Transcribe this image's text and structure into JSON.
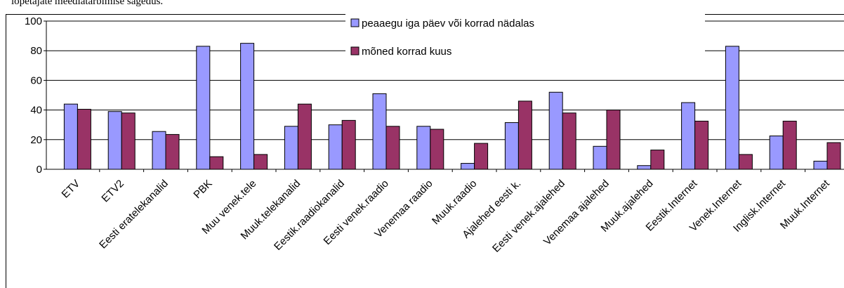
{
  "chart_data": {
    "type": "bar",
    "title": "lõpetajate meediatarbimise sagedus.",
    "categories": [
      "ETV",
      "ETV2",
      "Eesti eratelekanalid",
      "PBK",
      "Muu venek.tele",
      "Muuk.telekanalid",
      "Eestik.raadiokanalid",
      "Eesti venek.raadio",
      "Venemaa raadio",
      "Muuk.raadio",
      "Ajalehed eesti k.",
      "Eesti venek.ajalehed",
      "Venemaa ajalehed",
      "Muuk.ajalehed",
      "Eestik.Internet",
      "Venek.Internet",
      "Inglisk.Internet",
      "Muuk.Internet"
    ],
    "series": [
      {
        "name": "peaaegu iga päev või korrad nädalas",
        "color": "#9999ff",
        "values": [
          44,
          39,
          25.5,
          83,
          85,
          29,
          30,
          51,
          29,
          4,
          31.5,
          52,
          15.5,
          2.5,
          45,
          83,
          22.5,
          5.5
        ]
      },
      {
        "name": "mõned korrad kuus",
        "color": "#993366",
        "values": [
          40.5,
          38,
          23.5,
          8.5,
          10,
          44,
          33,
          29,
          27,
          17.5,
          46,
          38,
          40,
          13,
          32.5,
          10,
          32.5,
          18
        ]
      }
    ],
    "ylim": [
      0,
      100
    ],
    "yticks": [
      0,
      20,
      40,
      60,
      80,
      100
    ],
    "grid": true,
    "legend": "top"
  }
}
